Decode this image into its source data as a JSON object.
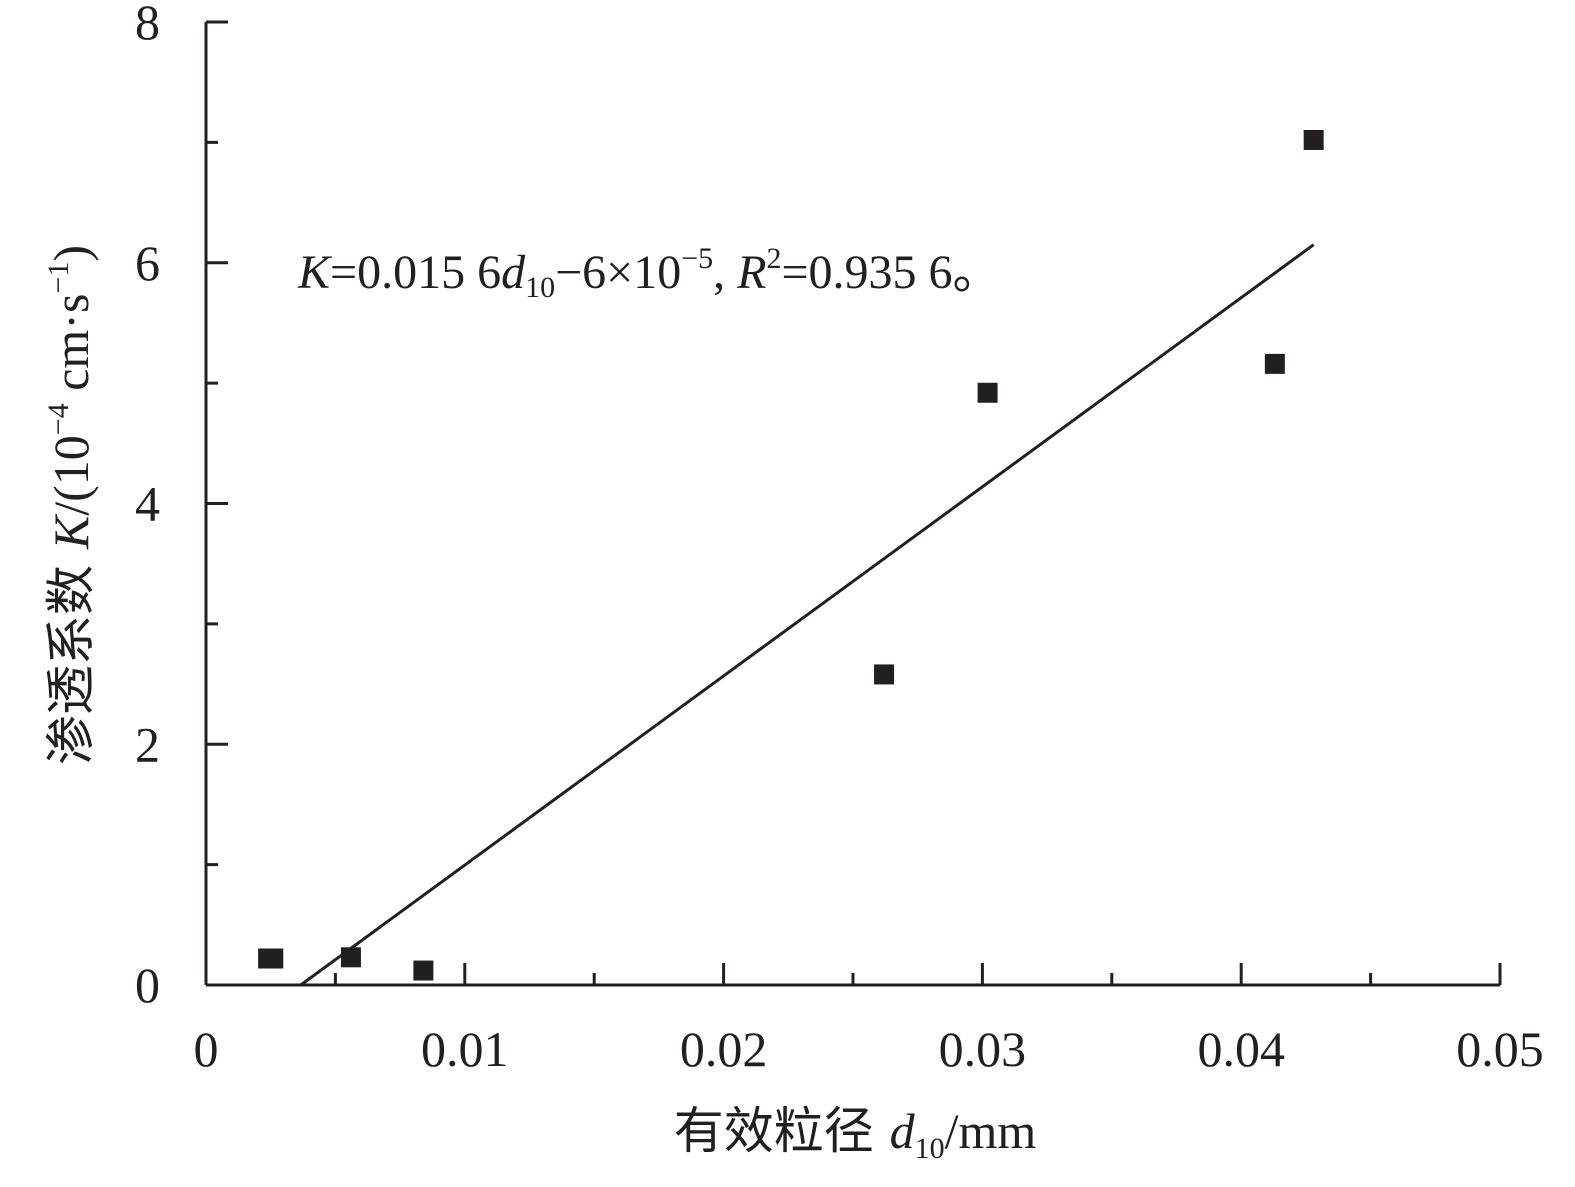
{
  "chart_data": {
    "type": "scatter",
    "title": "",
    "xlabel": {
      "text": "有效粒径 ",
      "var": "d",
      "sub": "10",
      "unit": "/mm"
    },
    "ylabel": {
      "text": "渗透系数 ",
      "var": "K",
      "unit_open": "/(10",
      "exp1": "−4",
      "unit_mid": " cm·s",
      "exp2": "−1",
      "unit_close": ")"
    },
    "xlim": [
      0,
      0.05
    ],
    "ylim": [
      0,
      8
    ],
    "x_major_ticks": [
      0,
      0.01,
      0.02,
      0.03,
      0.04,
      0.05
    ],
    "x_tick_labels": [
      "0",
      "0.01",
      "0.02",
      "0.03",
      "0.04",
      "0.05"
    ],
    "x_minor_ticks": [
      0.005,
      0.015,
      0.025,
      0.035,
      0.045
    ],
    "y_major_ticks": [
      0,
      2,
      4,
      6,
      8
    ],
    "y_tick_labels": [
      "0",
      "2",
      "4",
      "6",
      "8"
    ],
    "y_minor_ticks": [
      1,
      3,
      5,
      7
    ],
    "grid": false,
    "legend": "none",
    "marker_color": "#231f20",
    "series": [
      {
        "marker": "square",
        "points": [
          {
            "x": 0.0024,
            "y": 0.22
          },
          {
            "x": 0.0026,
            "y": 0.22
          },
          {
            "x": 0.0056,
            "y": 0.23
          },
          {
            "x": 0.0084,
            "y": 0.12
          },
          {
            "x": 0.0262,
            "y": 2.58
          },
          {
            "x": 0.0302,
            "y": 4.92
          },
          {
            "x": 0.0413,
            "y": 5.16
          },
          {
            "x": 0.0428,
            "y": 7.02
          }
        ]
      }
    ],
    "fit_line": {
      "x_start": 0.00366,
      "x_end": 0.0428,
      "y_start": 0.0,
      "y_end": 6.15
    },
    "annotation": {
      "k": "K",
      "eq1": "=0.015 6",
      "d": "d",
      "sub": "10",
      "eq2": "−6×10",
      "exp": "−5",
      "eq3": ", ",
      "r": "R",
      "r_exp": "2",
      "eq4": "=0.935 6。"
    }
  }
}
